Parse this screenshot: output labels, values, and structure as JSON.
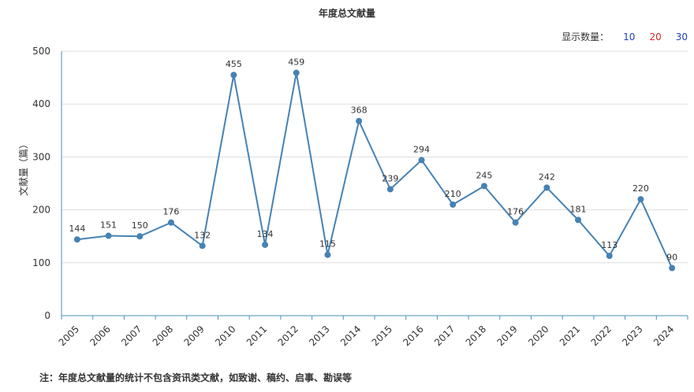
{
  "title": "年度总文献量",
  "display_count": {
    "label": "显示数量：",
    "options": [
      "10",
      "20",
      "30"
    ]
  },
  "note": "注：年度总文献量的统计不包含资讯类文献，如致谢、稿约、启事、勘误等",
  "chart_data": {
    "type": "line",
    "title": "年度总文献量",
    "xlabel": "",
    "ylabel": "文献量（篇）",
    "ylim": [
      0,
      500
    ],
    "yticks": [
      0,
      100,
      200,
      300,
      400,
      500
    ],
    "grid": true,
    "color": "#4682b4",
    "categories": [
      "2005",
      "2006",
      "2007",
      "2008",
      "2009",
      "2010",
      "2011",
      "2012",
      "2013",
      "2014",
      "2015",
      "2016",
      "2017",
      "2018",
      "2019",
      "2020",
      "2021",
      "2022",
      "2023",
      "2024"
    ],
    "values": [
      144,
      151,
      150,
      176,
      132,
      455,
      134,
      459,
      115,
      368,
      239,
      294,
      210,
      245,
      176,
      242,
      181,
      113,
      220,
      90
    ]
  }
}
